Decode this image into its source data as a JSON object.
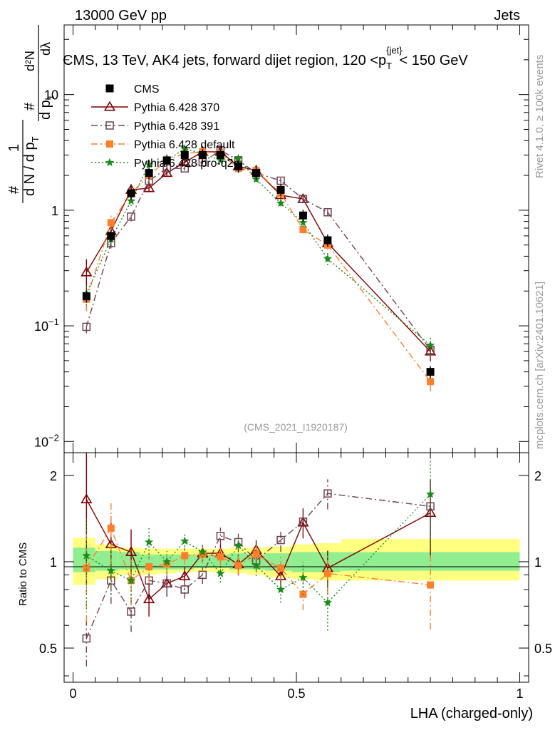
{
  "header": {
    "left": "13000 GeV pp",
    "right": "Jets",
    "title_main": "CMS, 13 TeV, AK4 jets, forward dijet region, 120 <p",
    "title_sub": "T",
    "title_sup": "{jet}",
    "title_tail": "< 150 GeV",
    "side_top": "Rivet 4.1.0, ≥ 100k events",
    "side_bottom": "mcplots.cern.ch [arXiv:2401.10621]",
    "analysis_tag": "(CMS_2021_I1920187)"
  },
  "ylabel_main": {
    "hash": "#",
    "one": "1",
    "den": "d N / d p",
    "den_sub": "T",
    "num_hash": "#",
    "num2": "d p",
    "num2_sub": "T",
    "num3": "d²N",
    "num4": "dλ"
  },
  "ratio_ylabel": "Ratio to CMS",
  "xlabel": "LHA (charged-only)",
  "main_yticks": [
    {
      "v": 0.01,
      "label": "10",
      "sup": "−2"
    },
    {
      "v": 0.1,
      "label": "10",
      "sup": "−1"
    },
    {
      "v": 1,
      "label": "1",
      "sup": ""
    },
    {
      "v": 10,
      "label": "10",
      "sup": ""
    }
  ],
  "ratio_yticks": [
    {
      "v": 0.5,
      "label": "0.5"
    },
    {
      "v": 1,
      "label": "1"
    },
    {
      "v": 2,
      "label": "2"
    }
  ],
  "xticks": [
    {
      "v": 0,
      "label": "0"
    },
    {
      "v": 0.5,
      "label": "0.5"
    },
    {
      "v": 1,
      "label": "1"
    }
  ],
  "chart_data": {
    "type": "scatter",
    "x": [
      0.03,
      0.085,
      0.13,
      0.17,
      0.21,
      0.25,
      0.29,
      0.33,
      0.37,
      0.41,
      0.465,
      0.515,
      0.57,
      0.8
    ],
    "xlim": [
      -0.02,
      1.02
    ],
    "ylim": [
      0.008,
      40
    ],
    "yscale": "log",
    "ratio_ylim": [
      0.38,
      2.4
    ],
    "band": {
      "edges": [
        0,
        0.05,
        0.1,
        0.15,
        0.19,
        0.23,
        0.27,
        0.31,
        0.35,
        0.39,
        0.43,
        0.49,
        0.54,
        0.6,
        1.0
      ],
      "green": [
        [
          0.92,
          1.12
        ],
        [
          0.93,
          1.09
        ],
        [
          0.94,
          1.08
        ],
        [
          0.94,
          1.06
        ],
        [
          0.94,
          1.06
        ],
        [
          0.94,
          1.06
        ],
        [
          0.95,
          1.06
        ],
        [
          0.95,
          1.06
        ],
        [
          0.94,
          1.07
        ],
        [
          0.94,
          1.06
        ],
        [
          0.93,
          1.07
        ],
        [
          0.92,
          1.08
        ],
        [
          0.92,
          1.08
        ],
        [
          0.93,
          1.08
        ]
      ],
      "yellow": [
        [
          0.83,
          1.21
        ],
        [
          0.87,
          1.15
        ],
        [
          0.9,
          1.12
        ],
        [
          0.9,
          1.11
        ],
        [
          0.91,
          1.11
        ],
        [
          0.92,
          1.11
        ],
        [
          0.92,
          1.11
        ],
        [
          0.92,
          1.11
        ],
        [
          0.91,
          1.12
        ],
        [
          0.9,
          1.12
        ],
        [
          0.88,
          1.13
        ],
        [
          0.87,
          1.15
        ],
        [
          0.86,
          1.16
        ],
        [
          0.86,
          1.2
        ]
      ]
    },
    "series": [
      {
        "name": "CMS",
        "values": [
          0.18,
          0.6,
          1.4,
          2.1,
          2.7,
          3.0,
          3.0,
          3.0,
          2.4,
          2.1,
          1.5,
          0.9,
          0.55,
          0.04
        ],
        "ratio": [
          1,
          1,
          1,
          1,
          1,
          1,
          1,
          1,
          1,
          1,
          1,
          1,
          1,
          1
        ],
        "color": "#000000",
        "marker": "square-filled",
        "line": "none"
      },
      {
        "name": "Pythia 6.428 370",
        "values": [
          0.29,
          0.66,
          1.5,
          1.55,
          2.1,
          2.6,
          3.2,
          3.2,
          2.4,
          2.2,
          1.35,
          1.25,
          0.52,
          0.06
        ],
        "ratio": [
          1.65,
          1.15,
          1.08,
          0.74,
          0.84,
          0.89,
          1.07,
          1.07,
          0.98,
          1.1,
          0.89,
          1.37,
          0.95,
          1.48
        ],
        "err": [
          0.5,
          0.25,
          0.2,
          0.13,
          0.1,
          0.08,
          0.07,
          0.07,
          0.08,
          0.08,
          0.1,
          0.12,
          0.15,
          0.3
        ],
        "color": "#800000",
        "marker": "triangle-open",
        "line": "solid"
      },
      {
        "name": "Pythia 6.428 391",
        "values": [
          0.098,
          0.52,
          0.88,
          1.8,
          2.3,
          2.3,
          2.6,
          3.3,
          2.7,
          2.1,
          1.8,
          1.25,
          0.96,
          0.062
        ],
        "ratio": [
          0.54,
          0.86,
          0.67,
          0.86,
          0.84,
          0.8,
          0.9,
          1.23,
          1.17,
          1.01,
          1.19,
          1.38,
          1.73,
          1.56
        ],
        "err": [
          0.2,
          0.17,
          0.15,
          0.1,
          0.08,
          0.07,
          0.07,
          0.07,
          0.07,
          0.08,
          0.09,
          0.1,
          0.12,
          0.2
        ],
        "color": "#704050",
        "marker": "square-open",
        "line": "dashdot"
      },
      {
        "name": "Pythia 6.428 default",
        "values": [
          0.17,
          0.78,
          1.4,
          2.0,
          2.7,
          3.1,
          3.2,
          3.1,
          2.3,
          2.2,
          1.4,
          0.68,
          0.5,
          0.033
        ],
        "ratio": [
          0.95,
          1.31,
          0.86,
          0.96,
          0.98,
          1.05,
          1.06,
          1.04,
          0.97,
          1.06,
          0.95,
          0.77,
          0.91,
          0.83
        ],
        "err": [
          0.35,
          0.25,
          0.18,
          0.12,
          0.09,
          0.07,
          0.07,
          0.07,
          0.08,
          0.08,
          0.1,
          0.12,
          0.15,
          0.3
        ],
        "color": "#ff7f2a",
        "marker": "square-filled",
        "line": "dashdot"
      },
      {
        "name": "Pythia 6.428 pro-q2o",
        "values": [
          0.19,
          0.56,
          1.2,
          2.5,
          2.7,
          3.4,
          3.1,
          2.7,
          2.8,
          1.85,
          1.15,
          0.78,
          0.38,
          0.068
        ],
        "ratio": [
          1.05,
          0.93,
          0.86,
          1.17,
          1.0,
          1.18,
          1.08,
          0.91,
          1.14,
          0.97,
          0.8,
          0.88,
          0.72,
          1.72
        ],
        "err": [
          0.35,
          0.2,
          0.16,
          0.12,
          0.09,
          0.07,
          0.07,
          0.07,
          0.08,
          0.08,
          0.1,
          0.13,
          0.2,
          0.35
        ],
        "color": "#1a8c1a",
        "marker": "star",
        "line": "dotted"
      }
    ]
  }
}
